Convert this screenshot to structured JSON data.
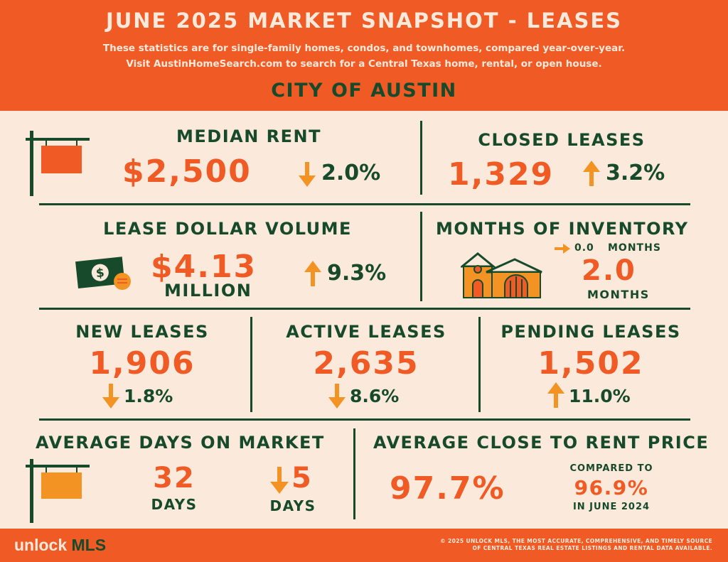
{
  "header": {
    "title": "JUNE 2025 MARKET SNAPSHOT - LEASES",
    "subtitle_line1": "These statistics are for single-family homes, condos, and townhomes, compared year-over-year.",
    "subtitle_line2": "Visit AustinHomeSearch.com to search for a Central Texas home, rental, or open house.",
    "city": "CITY OF AUSTIN"
  },
  "stats": {
    "median_rent": {
      "label": "MEDIAN RENT",
      "value": "$2,500",
      "change": "2.0%",
      "direction": "down"
    },
    "closed_leases": {
      "label": "CLOSED LEASES",
      "value": "1,329",
      "change": "3.2%",
      "direction": "up"
    },
    "lease_dollar_volume": {
      "label": "LEASE DOLLAR VOLUME",
      "value": "$4.13",
      "unit": "MILLION",
      "change": "9.3%",
      "direction": "up"
    },
    "months_of_inventory": {
      "label": "MONTHS OF INVENTORY",
      "change": "0.0",
      "change_unit": "MONTHS",
      "direction": "flat",
      "value": "2.0",
      "unit": "MONTHS"
    },
    "new_leases": {
      "label": "NEW LEASES",
      "value": "1,906",
      "change": "1.8%",
      "direction": "down"
    },
    "active_leases": {
      "label": "ACTIVE LEASES",
      "value": "2,635",
      "change": "8.6%",
      "direction": "down"
    },
    "pending_leases": {
      "label": "PENDING LEASES",
      "value": "1,502",
      "change": "11.0%",
      "direction": "up"
    },
    "avg_days_on_market": {
      "label": "AVERAGE DAYS ON MARKET",
      "value": "32",
      "unit": "DAYS",
      "change": "5",
      "change_unit": "DAYS",
      "direction": "down"
    },
    "avg_close_to_rent": {
      "label": "AVERAGE CLOSE TO RENT PRICE",
      "value": "97.7%",
      "compared_label": "COMPARED TO",
      "compared_value": "96.9%",
      "compared_period": "IN JUNE 2024"
    }
  },
  "footer": {
    "logo_part1": "unlock",
    "logo_part2": "MLS",
    "disclaimer_line1": "© 2025 UNLOCK MLS, THE MOST ACCURATE, COMPREHENSIVE, AND TIMELY SOURCE",
    "disclaimer_line2": "OF CENTRAL TEXAS REAL ESTATE LISTINGS AND RENTAL DATA AVAILABLE."
  },
  "colors": {
    "orange": "#f05a25",
    "dark_green": "#174a2b",
    "cream": "#fbeadb",
    "light_orange": "#f39324"
  },
  "icons": [
    "sign-post-icon",
    "money-icon",
    "house-icon",
    "arrow-up-icon",
    "arrow-down-icon",
    "arrow-right-icon"
  ]
}
